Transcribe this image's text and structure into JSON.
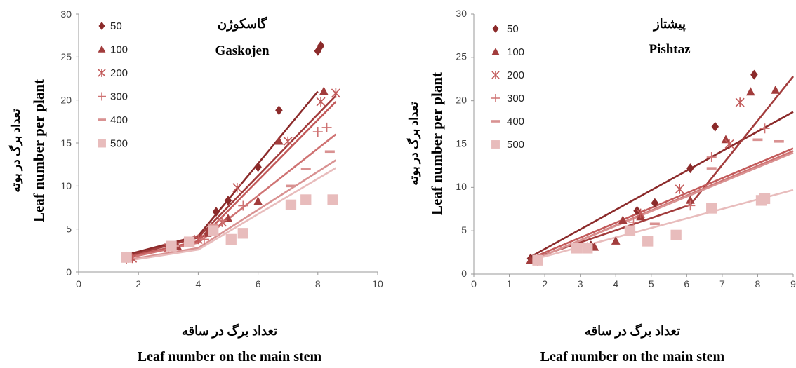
{
  "colors": {
    "50": "#8b2a2a",
    "100": "#a23c3c",
    "200": "#c25a5a",
    "300": "#cf7373",
    "400": "#d99292",
    "500": "#e8bcbc"
  },
  "chart_data": [
    {
      "type": "scatter",
      "title": "گاسکوژن",
      "subtitle": "Gaskojen",
      "xlabel_fa": "تعداد برگ در ساقه",
      "xlabel": "Leaf number on the main stem",
      "ylabel_fa": "تعداد برگ در بوته",
      "ylabel": "Leaf number per plant",
      "xlim": [
        0,
        10
      ],
      "ylim": [
        0,
        30
      ],
      "xticks": [
        0,
        2,
        4,
        6,
        8,
        10
      ],
      "yticks": [
        0,
        5,
        10,
        15,
        20,
        25,
        30
      ],
      "grid": false,
      "legend_position": "top-left",
      "series": [
        {
          "name": "50",
          "marker": "diamond",
          "points": [
            [
              1.6,
              1.8
            ],
            [
              3.2,
              3.0
            ],
            [
              4.6,
              7.0
            ],
            [
              5.0,
              8.3
            ],
            [
              6.0,
              12.2
            ],
            [
              6.7,
              18.8
            ],
            [
              8.0,
              25.7
            ],
            [
              8.1,
              26.3
            ]
          ],
          "lines": [
            [
              [
                1.6,
                2.0
              ],
              [
                4.0,
                4.2
              ],
              [
                8.0,
                21.0
              ]
            ]
          ]
        },
        {
          "name": "100",
          "marker": "triangle",
          "points": [
            [
              1.7,
              1.7
            ],
            [
              3.3,
              3.0
            ],
            [
              4.3,
              4.5
            ],
            [
              5.0,
              6.2
            ],
            [
              6.0,
              8.2
            ],
            [
              6.7,
              15.2
            ],
            [
              8.2,
              21.0
            ]
          ],
          "lines": [
            [
              [
                1.6,
                1.8
              ],
              [
                4.0,
                4.0
              ],
              [
                8.6,
                20.5
              ]
            ]
          ]
        },
        {
          "name": "200",
          "marker": "asterisk",
          "points": [
            [
              1.8,
              1.6
            ],
            [
              3.0,
              2.8
            ],
            [
              4.0,
              3.8
            ],
            [
              4.8,
              5.8
            ],
            [
              5.3,
              9.8
            ],
            [
              7.0,
              15.2
            ],
            [
              8.1,
              19.8
            ],
            [
              8.6,
              20.8
            ]
          ],
          "lines": [
            [
              [
                1.6,
                1.7
              ],
              [
                4.0,
                3.6
              ],
              [
                8.6,
                19.8
              ]
            ]
          ]
        },
        {
          "name": "300",
          "marker": "plus",
          "points": [
            [
              1.6,
              1.5
            ],
            [
              3.1,
              2.9
            ],
            [
              4.2,
              3.8
            ],
            [
              4.8,
              6.0
            ],
            [
              5.5,
              7.7
            ],
            [
              8.0,
              16.3
            ],
            [
              8.3,
              16.8
            ]
          ],
          "lines": [
            [
              [
                1.6,
                1.6
              ],
              [
                4.0,
                3.4
              ],
              [
                8.6,
                16.0
              ]
            ]
          ]
        },
        {
          "name": "400",
          "marker": "dash",
          "points": [
            [
              3.2,
              3.0
            ],
            [
              4.5,
              5.5
            ],
            [
              7.1,
              10.0
            ],
            [
              7.6,
              12.0
            ],
            [
              8.4,
              14.0
            ]
          ],
          "lines": [
            [
              [
                1.6,
                1.4
              ],
              [
                4.0,
                2.8
              ],
              [
                8.6,
                13.0
              ]
            ]
          ]
        },
        {
          "name": "500",
          "marker": "square",
          "points": [
            [
              1.6,
              1.7
            ],
            [
              3.1,
              3.0
            ],
            [
              3.7,
              3.5
            ],
            [
              4.5,
              4.8
            ],
            [
              5.1,
              3.8
            ],
            [
              5.5,
              4.5
            ],
            [
              7.1,
              7.8
            ],
            [
              7.6,
              8.4
            ],
            [
              8.5,
              8.4
            ]
          ],
          "lines": [
            [
              [
                1.6,
                1.3
              ],
              [
                4.0,
                2.6
              ],
              [
                8.6,
                12.1
              ]
            ]
          ]
        }
      ]
    },
    {
      "type": "scatter",
      "title": "پیشتاز",
      "subtitle": "Pishtaz",
      "xlabel_fa": "تعداد برگ در ساقه",
      "xlabel": "Leaf number on the main stem",
      "ylabel_fa": "تعداد برگ در بوته",
      "ylabel": "Leaf number per plant",
      "xlim": [
        0,
        9
      ],
      "ylim": [
        0,
        30
      ],
      "xticks": [
        0,
        1,
        2,
        3,
        4,
        5,
        6,
        7,
        8,
        9
      ],
      "yticks": [
        0,
        5,
        10,
        15,
        20,
        25,
        30
      ],
      "grid": false,
      "legend_position": "top-left",
      "series": [
        {
          "name": "50",
          "marker": "diamond",
          "points": [
            [
              1.6,
              1.8
            ],
            [
              2.9,
              3.0
            ],
            [
              3.3,
              3.3
            ],
            [
              4.6,
              7.3
            ],
            [
              5.1,
              8.2
            ],
            [
              6.1,
              12.2
            ],
            [
              6.8,
              17.0
            ],
            [
              7.9,
              23.0
            ]
          ],
          "lines": [
            [
              [
                1.6,
                2.0
              ],
              [
                9.0,
                18.7
              ]
            ]
          ]
        },
        {
          "name": "100",
          "marker": "triangle",
          "points": [
            [
              1.6,
              1.6
            ],
            [
              2.9,
              3.0
            ],
            [
              3.4,
              3.1
            ],
            [
              4.0,
              3.8
            ],
            [
              4.2,
              6.2
            ],
            [
              4.7,
              6.6
            ],
            [
              6.1,
              8.5
            ],
            [
              7.1,
              15.5
            ],
            [
              7.8,
              21.0
            ],
            [
              8.5,
              21.2
            ]
          ],
          "lines": [
            [
              [
                1.6,
                1.7
              ],
              [
                6.1,
                8.0
              ],
              [
                9.0,
                22.8
              ]
            ]
          ]
        },
        {
          "name": "200",
          "marker": "asterisk",
          "points": [
            [
              1.8,
              1.7
            ],
            [
              3.2,
              3.0
            ],
            [
              4.7,
              7.0
            ],
            [
              5.8,
              9.8
            ],
            [
              7.2,
              15.0
            ],
            [
              7.5,
              19.8
            ]
          ],
          "lines": [
            [
              [
                1.6,
                1.8
              ],
              [
                9.0,
                14.5
              ]
            ]
          ]
        },
        {
          "name": "300",
          "marker": "plus",
          "points": [
            [
              1.8,
              1.5
            ],
            [
              3.2,
              3.1
            ],
            [
              4.5,
              6.0
            ],
            [
              6.1,
              7.9
            ],
            [
              6.7,
              13.5
            ],
            [
              8.2,
              16.8
            ]
          ],
          "lines": [
            [
              [
                1.6,
                1.5
              ],
              [
                9.0,
                14.2
              ]
            ]
          ]
        },
        {
          "name": "400",
          "marker": "dash",
          "points": [
            [
              5.1,
              5.8
            ],
            [
              6.7,
              12.2
            ],
            [
              8.0,
              15.5
            ],
            [
              8.6,
              15.3
            ]
          ],
          "lines": [
            [
              [
                1.6,
                1.5
              ],
              [
                9.0,
                14.0
              ]
            ]
          ]
        },
        {
          "name": "500",
          "marker": "square",
          "points": [
            [
              1.8,
              1.6
            ],
            [
              2.9,
              3.0
            ],
            [
              3.2,
              3.0
            ],
            [
              4.4,
              5.0
            ],
            [
              4.9,
              3.8
            ],
            [
              5.7,
              4.5
            ],
            [
              6.7,
              7.6
            ],
            [
              8.1,
              8.5
            ],
            [
              8.2,
              8.7
            ]
          ],
          "lines": [
            [
              [
                1.6,
                1.6
              ],
              [
                9.0,
                9.7
              ]
            ]
          ]
        }
      ]
    }
  ]
}
